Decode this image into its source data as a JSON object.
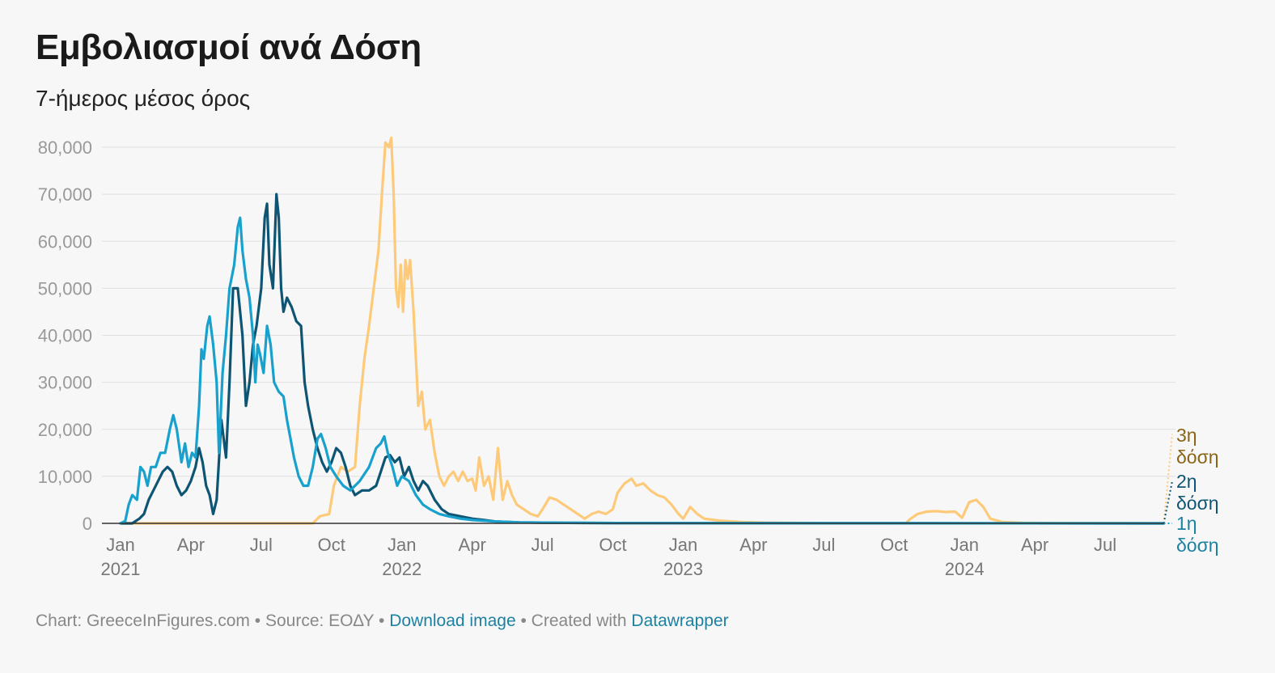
{
  "title": "Εμβολιασμοί ανά Δόση",
  "subtitle": "7-ήμερος μέσος όρος",
  "footer": {
    "chart_credit": "Chart: GreeceInFigures.com",
    "separator1": " • ",
    "source": "Source: ΕΟΔΥ",
    "separator2": " • ",
    "download_link": "Download image",
    "separator3": " • ",
    "created_with": "Created with ",
    "datawrapper_link": "Datawrapper"
  },
  "colors": {
    "dose1": "#18a1cd",
    "dose2": "#0e5574",
    "dose3": "#fdca79",
    "dose1_label": "#1d81a2",
    "dose2_label": "#0e5574",
    "dose3_label": "#8a6417",
    "grid": "#e0e0e0",
    "baseline": "#333333"
  },
  "chart_data": {
    "type": "line",
    "title": "Εμβολιασμοί ανά Δόση",
    "subtitle": "7-ήμερος μέσος όρος",
    "xlabel": "",
    "ylabel": "",
    "x_unit": "months since Jan 2021",
    "xlim": [
      0,
      45
    ],
    "ylim": [
      0,
      80000
    ],
    "yticks": [
      0,
      10000,
      20000,
      30000,
      40000,
      50000,
      60000,
      70000,
      80000
    ],
    "ytick_labels": [
      "0",
      "10,000",
      "20,000",
      "30,000",
      "40,000",
      "50,000",
      "60,000",
      "70,000",
      "80,000"
    ],
    "xticks": [
      {
        "value": 0,
        "label": "Jan",
        "year": "2021"
      },
      {
        "value": 3,
        "label": "Apr",
        "year": ""
      },
      {
        "value": 6,
        "label": "Jul",
        "year": ""
      },
      {
        "value": 9,
        "label": "Oct",
        "year": ""
      },
      {
        "value": 12,
        "label": "Jan",
        "year": "2022"
      },
      {
        "value": 15,
        "label": "Apr",
        "year": ""
      },
      {
        "value": 18,
        "label": "Jul",
        "year": ""
      },
      {
        "value": 21,
        "label": "Oct",
        "year": ""
      },
      {
        "value": 24,
        "label": "Jan",
        "year": "2023"
      },
      {
        "value": 27,
        "label": "Apr",
        "year": ""
      },
      {
        "value": 30,
        "label": "Jul",
        "year": ""
      },
      {
        "value": 33,
        "label": "Oct",
        "year": ""
      },
      {
        "value": 36,
        "label": "Jan",
        "year": "2024"
      },
      {
        "value": 39,
        "label": "Apr",
        "year": ""
      },
      {
        "value": 42,
        "label": "Jul",
        "year": ""
      }
    ],
    "series": [
      {
        "name": "3η δόση",
        "label_lines": [
          "3η",
          "δόση"
        ],
        "color_key": "dose3",
        "label_color_key": "dose3_label",
        "end_value": 19000,
        "points": [
          [
            0,
            0
          ],
          [
            8.2,
            0
          ],
          [
            8.5,
            1500
          ],
          [
            8.9,
            2000
          ],
          [
            9.1,
            8000
          ],
          [
            9.4,
            12000
          ],
          [
            9.7,
            11000
          ],
          [
            10.0,
            12000
          ],
          [
            10.2,
            25000
          ],
          [
            10.4,
            35000
          ],
          [
            10.6,
            42000
          ],
          [
            10.8,
            50000
          ],
          [
            11.0,
            58000
          ],
          [
            11.15,
            70000
          ],
          [
            11.3,
            81000
          ],
          [
            11.45,
            80000
          ],
          [
            11.55,
            82000
          ],
          [
            11.65,
            70000
          ],
          [
            11.75,
            50000
          ],
          [
            11.85,
            46000
          ],
          [
            11.95,
            55000
          ],
          [
            12.05,
            45000
          ],
          [
            12.15,
            56000
          ],
          [
            12.25,
            52000
          ],
          [
            12.35,
            56000
          ],
          [
            12.5,
            45000
          ],
          [
            12.6,
            35000
          ],
          [
            12.7,
            25000
          ],
          [
            12.85,
            28000
          ],
          [
            13.0,
            20000
          ],
          [
            13.2,
            22000
          ],
          [
            13.4,
            15000
          ],
          [
            13.6,
            10000
          ],
          [
            13.8,
            8000
          ],
          [
            14.0,
            10000
          ],
          [
            14.2,
            11000
          ],
          [
            14.4,
            9000
          ],
          [
            14.6,
            11000
          ],
          [
            14.8,
            9000
          ],
          [
            15.0,
            9500
          ],
          [
            15.15,
            7000
          ],
          [
            15.3,
            14000
          ],
          [
            15.5,
            8000
          ],
          [
            15.7,
            10000
          ],
          [
            15.9,
            5000
          ],
          [
            16.1,
            16000
          ],
          [
            16.3,
            5000
          ],
          [
            16.5,
            9000
          ],
          [
            16.7,
            6000
          ],
          [
            16.9,
            4000
          ],
          [
            17.2,
            3000
          ],
          [
            17.5,
            2000
          ],
          [
            17.8,
            1500
          ],
          [
            18.0,
            3000
          ],
          [
            18.3,
            5500
          ],
          [
            18.6,
            5000
          ],
          [
            18.9,
            4000
          ],
          [
            19.2,
            3000
          ],
          [
            19.5,
            2000
          ],
          [
            19.8,
            1000
          ],
          [
            20.1,
            2000
          ],
          [
            20.4,
            2500
          ],
          [
            20.7,
            2000
          ],
          [
            21.0,
            3000
          ],
          [
            21.2,
            6500
          ],
          [
            21.5,
            8500
          ],
          [
            21.8,
            9500
          ],
          [
            22.0,
            8000
          ],
          [
            22.3,
            8500
          ],
          [
            22.6,
            7000
          ],
          [
            22.9,
            6000
          ],
          [
            23.2,
            5500
          ],
          [
            23.5,
            4000
          ],
          [
            23.8,
            2000
          ],
          [
            24.0,
            1000
          ],
          [
            24.3,
            3500
          ],
          [
            24.6,
            2000
          ],
          [
            24.9,
            1000
          ],
          [
            25.5,
            600
          ],
          [
            26.5,
            300
          ],
          [
            27.5,
            150
          ],
          [
            30,
            50
          ],
          [
            33.5,
            50
          ],
          [
            33.7,
            1000
          ],
          [
            34.0,
            2000
          ],
          [
            34.4,
            2500
          ],
          [
            34.8,
            2600
          ],
          [
            35.2,
            2400
          ],
          [
            35.6,
            2500
          ],
          [
            35.9,
            1200
          ],
          [
            36.2,
            4500
          ],
          [
            36.5,
            5000
          ],
          [
            36.8,
            3500
          ],
          [
            37.1,
            1000
          ],
          [
            37.6,
            300
          ],
          [
            38.5,
            100
          ],
          [
            40,
            50
          ],
          [
            44.5,
            0
          ]
        ]
      },
      {
        "name": "2η δόση",
        "label_lines": [
          "2η",
          "δόση"
        ],
        "color_key": "dose2",
        "label_color_key": "dose2_label",
        "end_value": 9000,
        "points": [
          [
            0,
            0
          ],
          [
            0.5,
            0
          ],
          [
            0.8,
            1000
          ],
          [
            1.0,
            2000
          ],
          [
            1.2,
            5000
          ],
          [
            1.4,
            7000
          ],
          [
            1.6,
            9000
          ],
          [
            1.8,
            11000
          ],
          [
            2.0,
            12000
          ],
          [
            2.2,
            11000
          ],
          [
            2.4,
            8000
          ],
          [
            2.6,
            6000
          ],
          [
            2.8,
            7000
          ],
          [
            3.0,
            9000
          ],
          [
            3.2,
            12000
          ],
          [
            3.35,
            16000
          ],
          [
            3.5,
            13000
          ],
          [
            3.65,
            8000
          ],
          [
            3.8,
            6000
          ],
          [
            3.95,
            2000
          ],
          [
            4.1,
            5000
          ],
          [
            4.3,
            22000
          ],
          [
            4.5,
            14000
          ],
          [
            4.65,
            30000
          ],
          [
            4.8,
            50000
          ],
          [
            5.0,
            50000
          ],
          [
            5.2,
            40000
          ],
          [
            5.35,
            25000
          ],
          [
            5.5,
            30000
          ],
          [
            5.65,
            38000
          ],
          [
            5.8,
            42000
          ],
          [
            6.0,
            50000
          ],
          [
            6.15,
            65000
          ],
          [
            6.25,
            68000
          ],
          [
            6.35,
            55000
          ],
          [
            6.5,
            50000
          ],
          [
            6.65,
            70000
          ],
          [
            6.75,
            65000
          ],
          [
            6.85,
            50000
          ],
          [
            6.95,
            45000
          ],
          [
            7.1,
            48000
          ],
          [
            7.3,
            46000
          ],
          [
            7.5,
            43000
          ],
          [
            7.7,
            42000
          ],
          [
            7.85,
            30000
          ],
          [
            8.0,
            25000
          ],
          [
            8.2,
            20000
          ],
          [
            8.4,
            16000
          ],
          [
            8.6,
            13000
          ],
          [
            8.8,
            11000
          ],
          [
            9.0,
            13000
          ],
          [
            9.2,
            16000
          ],
          [
            9.4,
            15000
          ],
          [
            9.6,
            12000
          ],
          [
            9.8,
            8000
          ],
          [
            10.0,
            6000
          ],
          [
            10.3,
            7000
          ],
          [
            10.6,
            7000
          ],
          [
            10.9,
            8000
          ],
          [
            11.1,
            11000
          ],
          [
            11.3,
            14000
          ],
          [
            11.5,
            14500
          ],
          [
            11.7,
            13000
          ],
          [
            11.9,
            14000
          ],
          [
            12.1,
            10000
          ],
          [
            12.3,
            12000
          ],
          [
            12.5,
            9000
          ],
          [
            12.7,
            7000
          ],
          [
            12.9,
            9000
          ],
          [
            13.1,
            8000
          ],
          [
            13.4,
            5000
          ],
          [
            13.7,
            3000
          ],
          [
            14.0,
            2000
          ],
          [
            14.5,
            1500
          ],
          [
            15.0,
            1000
          ],
          [
            15.5,
            700
          ],
          [
            16.0,
            400
          ],
          [
            17,
            200
          ],
          [
            19,
            100
          ],
          [
            22,
            50
          ],
          [
            44.5,
            0
          ]
        ]
      },
      {
        "name": "1η δόση",
        "label_lines": [
          "1η",
          "δόση"
        ],
        "color_key": "dose1",
        "label_color_key": "dose1_label",
        "end_value": 0,
        "points": [
          [
            0,
            0
          ],
          [
            0.2,
            500
          ],
          [
            0.35,
            4000
          ],
          [
            0.5,
            6000
          ],
          [
            0.7,
            5000
          ],
          [
            0.85,
            12000
          ],
          [
            1.0,
            11000
          ],
          [
            1.15,
            8000
          ],
          [
            1.3,
            12000
          ],
          [
            1.5,
            12000
          ],
          [
            1.7,
            15000
          ],
          [
            1.9,
            15000
          ],
          [
            2.1,
            20000
          ],
          [
            2.25,
            23000
          ],
          [
            2.4,
            20000
          ],
          [
            2.6,
            13000
          ],
          [
            2.75,
            17000
          ],
          [
            2.9,
            12000
          ],
          [
            3.05,
            15000
          ],
          [
            3.2,
            14000
          ],
          [
            3.35,
            25000
          ],
          [
            3.45,
            37000
          ],
          [
            3.55,
            35000
          ],
          [
            3.7,
            42000
          ],
          [
            3.8,
            44000
          ],
          [
            3.95,
            38000
          ],
          [
            4.1,
            30000
          ],
          [
            4.2,
            15000
          ],
          [
            4.35,
            32000
          ],
          [
            4.5,
            40000
          ],
          [
            4.65,
            50000
          ],
          [
            4.85,
            55000
          ],
          [
            5.0,
            63000
          ],
          [
            5.1,
            65000
          ],
          [
            5.2,
            58000
          ],
          [
            5.35,
            52000
          ],
          [
            5.5,
            48000
          ],
          [
            5.65,
            40000
          ],
          [
            5.75,
            30000
          ],
          [
            5.85,
            38000
          ],
          [
            5.95,
            36000
          ],
          [
            6.1,
            32000
          ],
          [
            6.25,
            42000
          ],
          [
            6.4,
            38000
          ],
          [
            6.55,
            30000
          ],
          [
            6.75,
            28000
          ],
          [
            6.95,
            27000
          ],
          [
            7.1,
            22000
          ],
          [
            7.25,
            18000
          ],
          [
            7.4,
            14000
          ],
          [
            7.6,
            10000
          ],
          [
            7.8,
            8000
          ],
          [
            8.0,
            8000
          ],
          [
            8.2,
            12000
          ],
          [
            8.4,
            18000
          ],
          [
            8.55,
            19000
          ],
          [
            8.75,
            16000
          ],
          [
            8.95,
            12000
          ],
          [
            9.2,
            10000
          ],
          [
            9.5,
            8000
          ],
          [
            9.8,
            7000
          ],
          [
            10.2,
            9000
          ],
          [
            10.6,
            12000
          ],
          [
            10.9,
            16000
          ],
          [
            11.1,
            17000
          ],
          [
            11.25,
            18500
          ],
          [
            11.4,
            15000
          ],
          [
            11.6,
            12000
          ],
          [
            11.8,
            8000
          ],
          [
            12.0,
            10000
          ],
          [
            12.3,
            9000
          ],
          [
            12.6,
            6000
          ],
          [
            12.9,
            4000
          ],
          [
            13.2,
            3000
          ],
          [
            13.6,
            2000
          ],
          [
            14.0,
            1500
          ],
          [
            14.5,
            1000
          ],
          [
            15.0,
            700
          ],
          [
            16.0,
            400
          ],
          [
            17.0,
            200
          ],
          [
            19,
            100
          ],
          [
            22,
            50
          ],
          [
            44.5,
            0
          ]
        ]
      }
    ]
  }
}
